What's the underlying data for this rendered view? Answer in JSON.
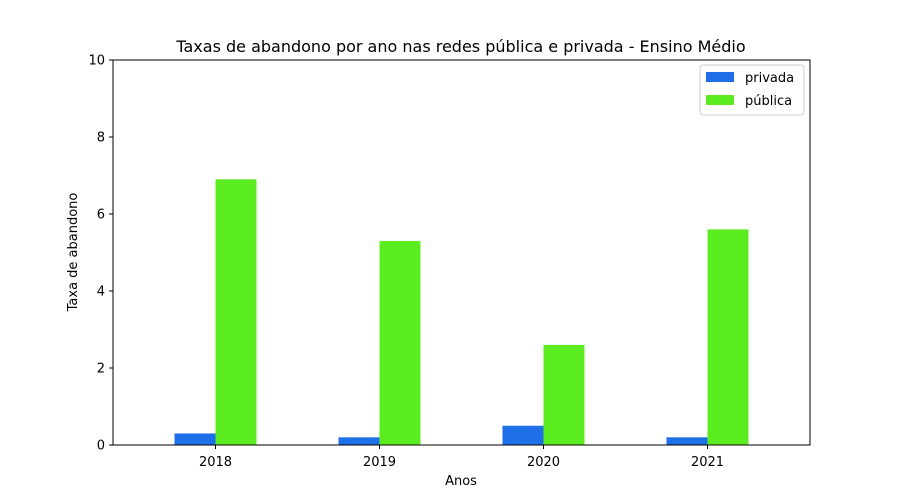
{
  "chart_data": {
    "type": "bar",
    "title": "Taxas de abandono por ano nas redes pública e privada - Ensino Médio",
    "xlabel": "Anos",
    "ylabel": "Taxa de abandono",
    "categories": [
      "2018",
      "2019",
      "2020",
      "2021"
    ],
    "yticks": [
      "0",
      "2",
      "4",
      "6",
      "8",
      "10"
    ],
    "ylim": [
      0,
      10
    ],
    "grid": false,
    "legend_position": "top-right",
    "series": [
      {
        "name": "privada",
        "color": "#1f6fe8",
        "values": [
          0.3,
          0.2,
          0.5,
          0.2
        ]
      },
      {
        "name": "pública",
        "color": "#5aec1f",
        "values": [
          6.9,
          5.3,
          2.6,
          5.6
        ]
      }
    ]
  }
}
